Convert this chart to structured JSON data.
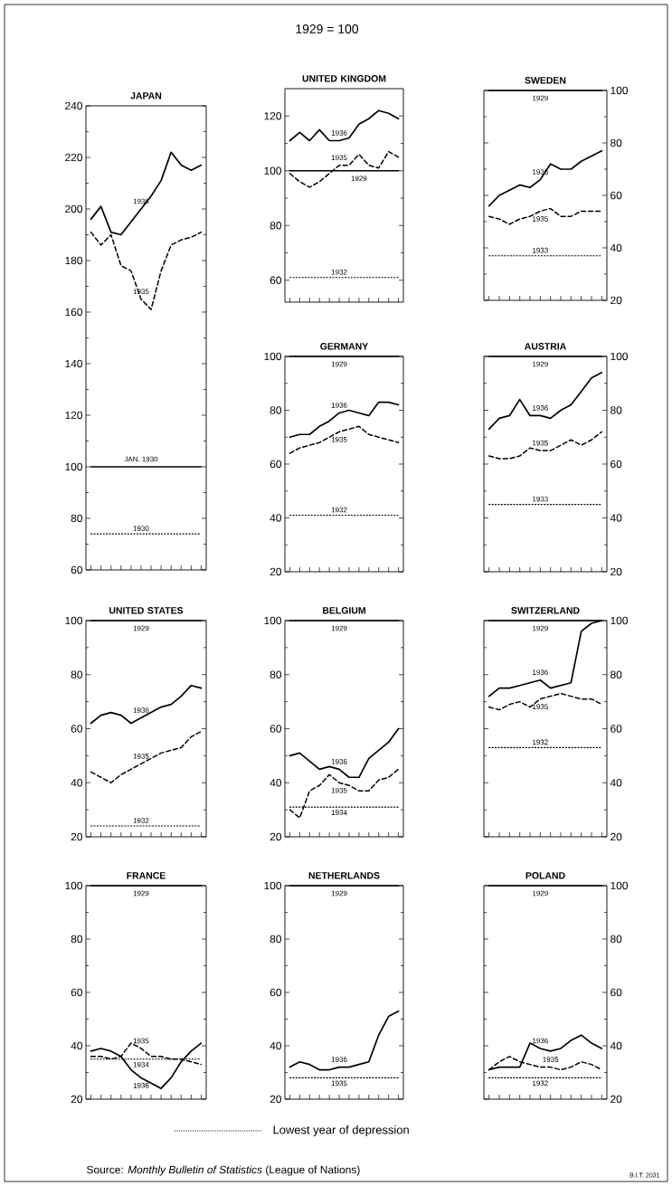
{
  "chart_data": [
    {
      "type": "line",
      "title": "JAPAN",
      "categories": [
        null,
        null,
        null,
        null,
        null,
        null,
        null,
        null,
        null,
        null,
        null,
        null
      ],
      "ylim": [
        60,
        240
      ],
      "yticks": [
        60,
        80,
        100,
        120,
        140,
        160,
        180,
        200,
        220,
        240
      ],
      "tick_labels": "y",
      "series": [
        {
          "name": "1936",
          "color": "#000000",
          "line_style": "solid",
          "values": [
            196,
            201,
            191,
            190,
            195,
            200,
            205,
            211,
            222,
            217,
            215,
            217
          ]
        },
        {
          "name": "1935",
          "color": "#000000",
          "line_style": "dashed",
          "values": [
            191,
            186,
            190,
            178,
            176,
            165,
            161,
            176,
            186,
            188,
            189,
            191
          ]
        },
        {
          "name": "1930",
          "color": "#000000",
          "line_style": "dotted",
          "values": [
            74,
            74,
            74,
            74,
            74,
            74,
            74,
            74,
            74,
            74,
            74,
            74
          ]
        },
        {
          "name": "JAN. 1930",
          "color": "#000000",
          "line_style": "solid",
          "values": [
            100,
            100,
            100,
            100,
            100,
            100,
            100,
            100,
            100,
            100,
            100,
            100
          ]
        }
      ],
      "annotations": [
        "1929 = 100"
      ]
    },
    {
      "type": "line",
      "title": "UNITED KINGDOM",
      "categories": [
        null,
        null,
        null,
        null,
        null,
        null,
        null,
        null,
        null,
        null,
        null,
        null
      ],
      "ylim": [
        52,
        130
      ],
      "yticks": [
        60,
        80,
        100,
        120
      ],
      "tick_labels": "y",
      "series": [
        {
          "name": "1936",
          "color": "#000000",
          "line_style": "solid",
          "values": [
            111,
            114,
            111,
            115,
            111,
            111,
            112,
            117,
            119,
            122,
            121,
            119
          ]
        },
        {
          "name": "1935",
          "color": "#000000",
          "line_style": "dashed",
          "values": [
            99,
            96,
            94,
            96,
            99,
            102,
            102,
            106,
            102,
            101,
            107,
            105
          ]
        },
        {
          "name": "1932",
          "color": "#000000",
          "line_style": "dotted",
          "values": [
            61,
            61,
            61,
            61,
            61,
            61,
            61,
            61,
            61,
            61,
            61,
            61
          ]
        },
        {
          "name": "1929",
          "color": "#000000",
          "line_style": "solid",
          "values": [
            100,
            100,
            100,
            100,
            100,
            100,
            100,
            100,
            100,
            100,
            100,
            100
          ]
        }
      ]
    },
    {
      "type": "line",
      "title": "SWEDEN",
      "categories": [
        null,
        null,
        null,
        null,
        null,
        null,
        null,
        null,
        null,
        null,
        null,
        null
      ],
      "ylim": [
        20,
        100
      ],
      "yticks": [
        20,
        40,
        60,
        80,
        100
      ],
      "tick_labels": "y",
      "series": [
        {
          "name": "1936",
          "color": "#000000",
          "line_style": "solid",
          "values": [
            56,
            60,
            62,
            64,
            63,
            66,
            72,
            70,
            70,
            73,
            75,
            77
          ]
        },
        {
          "name": "1935",
          "color": "#000000",
          "line_style": "dashed",
          "values": [
            52,
            51,
            49,
            51,
            52,
            54,
            55,
            52,
            52,
            54,
            54,
            54
          ]
        },
        {
          "name": "1933",
          "color": "#000000",
          "line_style": "dotted",
          "values": [
            37,
            37,
            37,
            37,
            37,
            37,
            37,
            37,
            37,
            37,
            37,
            37
          ]
        },
        {
          "name": "1929",
          "color": "#000000",
          "line_style": "solid",
          "values": [
            100,
            100,
            100,
            100,
            100,
            100,
            100,
            100,
            100,
            100,
            100,
            100
          ]
        }
      ]
    },
    {
      "type": "line",
      "title": "GERMANY",
      "categories": [
        null,
        null,
        null,
        null,
        null,
        null,
        null,
        null,
        null,
        null,
        null,
        null
      ],
      "ylim": [
        20,
        100
      ],
      "yticks": [
        20,
        40,
        60,
        80,
        100
      ],
      "tick_labels": "y",
      "series": [
        {
          "name": "1936",
          "color": "#000000",
          "line_style": "solid",
          "values": [
            70,
            71,
            71,
            74,
            76,
            79,
            80,
            79,
            78,
            83,
            83,
            82
          ]
        },
        {
          "name": "1935",
          "color": "#000000",
          "line_style": "dashed",
          "values": [
            64,
            66,
            67,
            68,
            70,
            72,
            73,
            74,
            71,
            70,
            69,
            68
          ]
        },
        {
          "name": "1932",
          "color": "#000000",
          "line_style": "dotted",
          "values": [
            41,
            41,
            41,
            41,
            41,
            41,
            41,
            41,
            41,
            41,
            41,
            41
          ]
        },
        {
          "name": "1929",
          "color": "#000000",
          "line_style": "solid",
          "values": [
            100,
            100,
            100,
            100,
            100,
            100,
            100,
            100,
            100,
            100,
            100,
            100
          ]
        }
      ]
    },
    {
      "type": "line",
      "title": "AUSTRIA",
      "categories": [
        null,
        null,
        null,
        null,
        null,
        null,
        null,
        null,
        null,
        null,
        null,
        null
      ],
      "ylim": [
        20,
        100
      ],
      "yticks": [
        20,
        40,
        60,
        80,
        100
      ],
      "tick_labels": "y",
      "series": [
        {
          "name": "1936",
          "color": "#000000",
          "line_style": "solid",
          "values": [
            73,
            77,
            78,
            84,
            78,
            78,
            77,
            80,
            82,
            87,
            92,
            94
          ]
        },
        {
          "name": "1935",
          "color": "#000000",
          "line_style": "dashed",
          "values": [
            63,
            62,
            62,
            63,
            66,
            65,
            65,
            67,
            69,
            67,
            69,
            72
          ]
        },
        {
          "name": "1933",
          "color": "#000000",
          "line_style": "dotted",
          "values": [
            45,
            45,
            45,
            45,
            45,
            45,
            45,
            45,
            45,
            45,
            45,
            45
          ]
        },
        {
          "name": "1929",
          "color": "#000000",
          "line_style": "solid",
          "values": [
            100,
            100,
            100,
            100,
            100,
            100,
            100,
            100,
            100,
            100,
            100,
            100
          ]
        }
      ]
    },
    {
      "type": "line",
      "title": "UNITED STATES",
      "categories": [
        null,
        null,
        null,
        null,
        null,
        null,
        null,
        null,
        null,
        null,
        null,
        null
      ],
      "ylim": [
        20,
        100
      ],
      "yticks": [
        20,
        40,
        60,
        80,
        100
      ],
      "tick_labels": "y",
      "series": [
        {
          "name": "1936",
          "color": "#000000",
          "line_style": "solid",
          "values": [
            62,
            65,
            66,
            65,
            62,
            64,
            66,
            68,
            69,
            72,
            76,
            75
          ]
        },
        {
          "name": "1935",
          "color": "#000000",
          "line_style": "dashed",
          "values": [
            44,
            42,
            40,
            43,
            45,
            47,
            49,
            51,
            52,
            53,
            57,
            59
          ]
        },
        {
          "name": "1932",
          "color": "#000000",
          "line_style": "dotted",
          "values": [
            24,
            24,
            24,
            24,
            24,
            24,
            24,
            24,
            24,
            24,
            24,
            24
          ]
        },
        {
          "name": "1929",
          "color": "#000000",
          "line_style": "solid",
          "values": [
            100,
            100,
            100,
            100,
            100,
            100,
            100,
            100,
            100,
            100,
            100,
            100
          ]
        }
      ]
    },
    {
      "type": "line",
      "title": "BELGIUM",
      "categories": [
        null,
        null,
        null,
        null,
        null,
        null,
        null,
        null,
        null,
        null,
        null,
        null
      ],
      "ylim": [
        20,
        100
      ],
      "yticks": [
        20,
        40,
        60,
        80,
        100
      ],
      "tick_labels": "y",
      "series": [
        {
          "name": "1936",
          "color": "#000000",
          "line_style": "solid",
          "values": [
            50,
            51,
            48,
            45,
            46,
            45,
            42,
            42,
            49,
            52,
            55,
            60
          ]
        },
        {
          "name": "1935",
          "color": "#000000",
          "line_style": "dashed",
          "values": [
            30,
            27,
            37,
            39,
            43,
            40,
            39,
            37,
            37,
            41,
            42,
            45
          ]
        },
        {
          "name": "1934",
          "color": "#000000",
          "line_style": "dotted",
          "values": [
            31,
            31,
            31,
            31,
            31,
            31,
            31,
            31,
            31,
            31,
            31,
            31
          ]
        },
        {
          "name": "1929",
          "color": "#000000",
          "line_style": "solid",
          "values": [
            100,
            100,
            100,
            100,
            100,
            100,
            100,
            100,
            100,
            100,
            100,
            100
          ]
        }
      ]
    },
    {
      "type": "line",
      "title": "SWITZERLAND",
      "categories": [
        null,
        null,
        null,
        null,
        null,
        null,
        null,
        null,
        null,
        null,
        null,
        null
      ],
      "ylim": [
        20,
        100
      ],
      "yticks": [
        20,
        40,
        60,
        80,
        100
      ],
      "tick_labels": "y",
      "series": [
        {
          "name": "1936",
          "color": "#000000",
          "line_style": "solid",
          "values": [
            72,
            75,
            75,
            76,
            77,
            78,
            75,
            76,
            77,
            96,
            99,
            100
          ]
        },
        {
          "name": "1935",
          "color": "#000000",
          "line_style": "dashed",
          "values": [
            68,
            67,
            69,
            70,
            68,
            71,
            72,
            73,
            72,
            71,
            71,
            69
          ]
        },
        {
          "name": "1932",
          "color": "#000000",
          "line_style": "dotted",
          "values": [
            53,
            53,
            53,
            53,
            53,
            53,
            53,
            53,
            53,
            53,
            53,
            53
          ]
        },
        {
          "name": "1929",
          "color": "#000000",
          "line_style": "solid",
          "values": [
            100,
            100,
            100,
            100,
            100,
            100,
            100,
            100,
            100,
            100,
            100,
            100
          ]
        }
      ]
    },
    {
      "type": "line",
      "title": "FRANCE",
      "categories": [
        null,
        null,
        null,
        null,
        null,
        null,
        null,
        null,
        null,
        null,
        null,
        null
      ],
      "ylim": [
        20,
        100
      ],
      "yticks": [
        20,
        40,
        60,
        80,
        100
      ],
      "tick_labels": "y",
      "series": [
        {
          "name": "1936",
          "color": "#000000",
          "line_style": "solid",
          "values": [
            38,
            39,
            38,
            36,
            31,
            28,
            26,
            24,
            28,
            34,
            38,
            41
          ]
        },
        {
          "name": "1935",
          "color": "#000000",
          "line_style": "dashed",
          "values": [
            36,
            36,
            35,
            36,
            41,
            39,
            36,
            36,
            35,
            35,
            34,
            33
          ]
        },
        {
          "name": "1934",
          "color": "#000000",
          "line_style": "dotted",
          "values": [
            35,
            35,
            35,
            35,
            35,
            35,
            35,
            35,
            35,
            35,
            35,
            35
          ]
        },
        {
          "name": "1929",
          "color": "#000000",
          "line_style": "solid",
          "values": [
            100,
            100,
            100,
            100,
            100,
            100,
            100,
            100,
            100,
            100,
            100,
            100
          ]
        }
      ]
    },
    {
      "type": "line",
      "title": "NETHERLANDS",
      "categories": [
        null,
        null,
        null,
        null,
        null,
        null,
        null,
        null,
        null,
        null,
        null,
        null
      ],
      "ylim": [
        20,
        100
      ],
      "yticks": [
        20,
        40,
        60,
        80,
        100
      ],
      "tick_labels": "y",
      "series": [
        {
          "name": "1936",
          "color": "#000000",
          "line_style": "solid",
          "values": [
            32,
            34,
            33,
            31,
            31,
            32,
            32,
            33,
            34,
            44,
            51,
            53
          ]
        },
        {
          "name": "1935",
          "color": "#000000",
          "line_style": "dotted",
          "values": [
            28,
            28,
            28,
            28,
            28,
            28,
            28,
            28,
            28,
            28,
            28,
            28
          ]
        },
        {
          "name": "1929",
          "color": "#000000",
          "line_style": "solid",
          "values": [
            100,
            100,
            100,
            100,
            100,
            100,
            100,
            100,
            100,
            100,
            100,
            100
          ]
        }
      ]
    },
    {
      "type": "line",
      "title": "POLAND",
      "categories": [
        null,
        null,
        null,
        null,
        null,
        null,
        null,
        null,
        null,
        null,
        null,
        null
      ],
      "ylim": [
        20,
        100
      ],
      "yticks": [
        20,
        40,
        60,
        80,
        100
      ],
      "tick_labels": "y",
      "series": [
        {
          "name": "1936",
          "color": "#000000",
          "line_style": "solid",
          "values": [
            31,
            32,
            32,
            32,
            41,
            39,
            38,
            39,
            42,
            44,
            41,
            39
          ]
        },
        {
          "name": "1935",
          "color": "#000000",
          "line_style": "dashed",
          "values": [
            31,
            34,
            36,
            34,
            33,
            32,
            32,
            31,
            32,
            34,
            33,
            31
          ]
        },
        {
          "name": "1932",
          "color": "#000000",
          "line_style": "dotted",
          "values": [
            28,
            28,
            28,
            28,
            28,
            28,
            28,
            28,
            28,
            28,
            28,
            28
          ]
        },
        {
          "name": "1929",
          "color": "#000000",
          "line_style": "solid",
          "values": [
            100,
            100,
            100,
            100,
            100,
            100,
            100,
            100,
            100,
            100,
            100,
            100
          ]
        }
      ],
      "annotations": [
        "Lowest year of depression",
        "Source: *Monthly Bulletin of Statistics* (League of Nations)",
        "B.I.T. 2031"
      ]
    }
  ]
}
